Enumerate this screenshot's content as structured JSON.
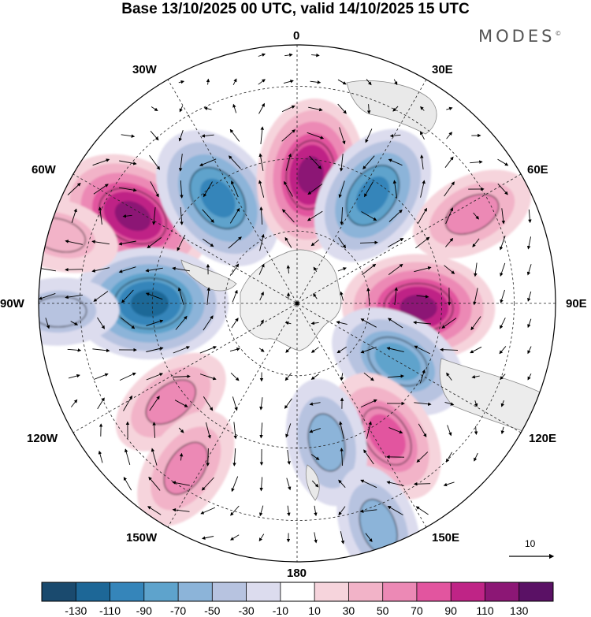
{
  "title": "Base 13/10/2025 00 UTC, valid 14/10/2025 15 UTC",
  "brand": "MODES",
  "brand_mark": "©",
  "longitude_labels": {
    "n0": "0",
    "e30": "30E",
    "e60": "60E",
    "e90": "90E",
    "e120": "120E",
    "e150": "150E",
    "s180": "180",
    "w150": "150W",
    "w120": "120W",
    "w90": "90W",
    "w60": "60W",
    "w30": "30W"
  },
  "reference_vector": {
    "value": "10"
  },
  "colorbar": {
    "labels": [
      "-130",
      "-110",
      "-90",
      "-70",
      "-50",
      "-30",
      "-10",
      "10",
      "30",
      "50",
      "70",
      "90",
      "110",
      "130"
    ],
    "colors": [
      "#1a4a6e",
      "#1d6797",
      "#3585ba",
      "#5ea3cc",
      "#8cb4d9",
      "#b7c3e0",
      "#dcdcee",
      "#ffffff",
      "#f6d4dc",
      "#f2b3c8",
      "#ec89b5",
      "#e2559f",
      "#bf2486",
      "#8c1775",
      "#5a1165"
    ]
  },
  "field": {
    "anomalies": [
      {
        "lon": 298,
        "lat_r": 0.72,
        "value": 125
      },
      {
        "lon": 270,
        "lat_r": 0.57,
        "value": -125
      },
      {
        "lon": 323,
        "lat_r": 0.51,
        "value": -110
      },
      {
        "lon": 6,
        "lat_r": 0.5,
        "value": 115
      },
      {
        "lon": 35,
        "lat_r": 0.51,
        "value": -100
      },
      {
        "lon": 92,
        "lat_r": 0.47,
        "value": 115
      },
      {
        "lon": 120,
        "lat_r": 0.45,
        "value": -90
      },
      {
        "lon": 146,
        "lat_r": 0.62,
        "value": 85
      },
      {
        "lon": 168,
        "lat_r": 0.55,
        "value": -60
      },
      {
        "lon": 232,
        "lat_r": 0.62,
        "value": 55
      },
      {
        "lon": 214,
        "lat_r": 0.77,
        "value": 60
      },
      {
        "lon": 63,
        "lat_r": 0.76,
        "value": 55
      },
      {
        "lon": 160,
        "lat_r": 0.92,
        "value": -55
      },
      {
        "lon": 268,
        "lat_r": 0.92,
        "value": -40
      },
      {
        "lon": 286,
        "lat_r": 0.96,
        "value": 45
      }
    ]
  }
}
